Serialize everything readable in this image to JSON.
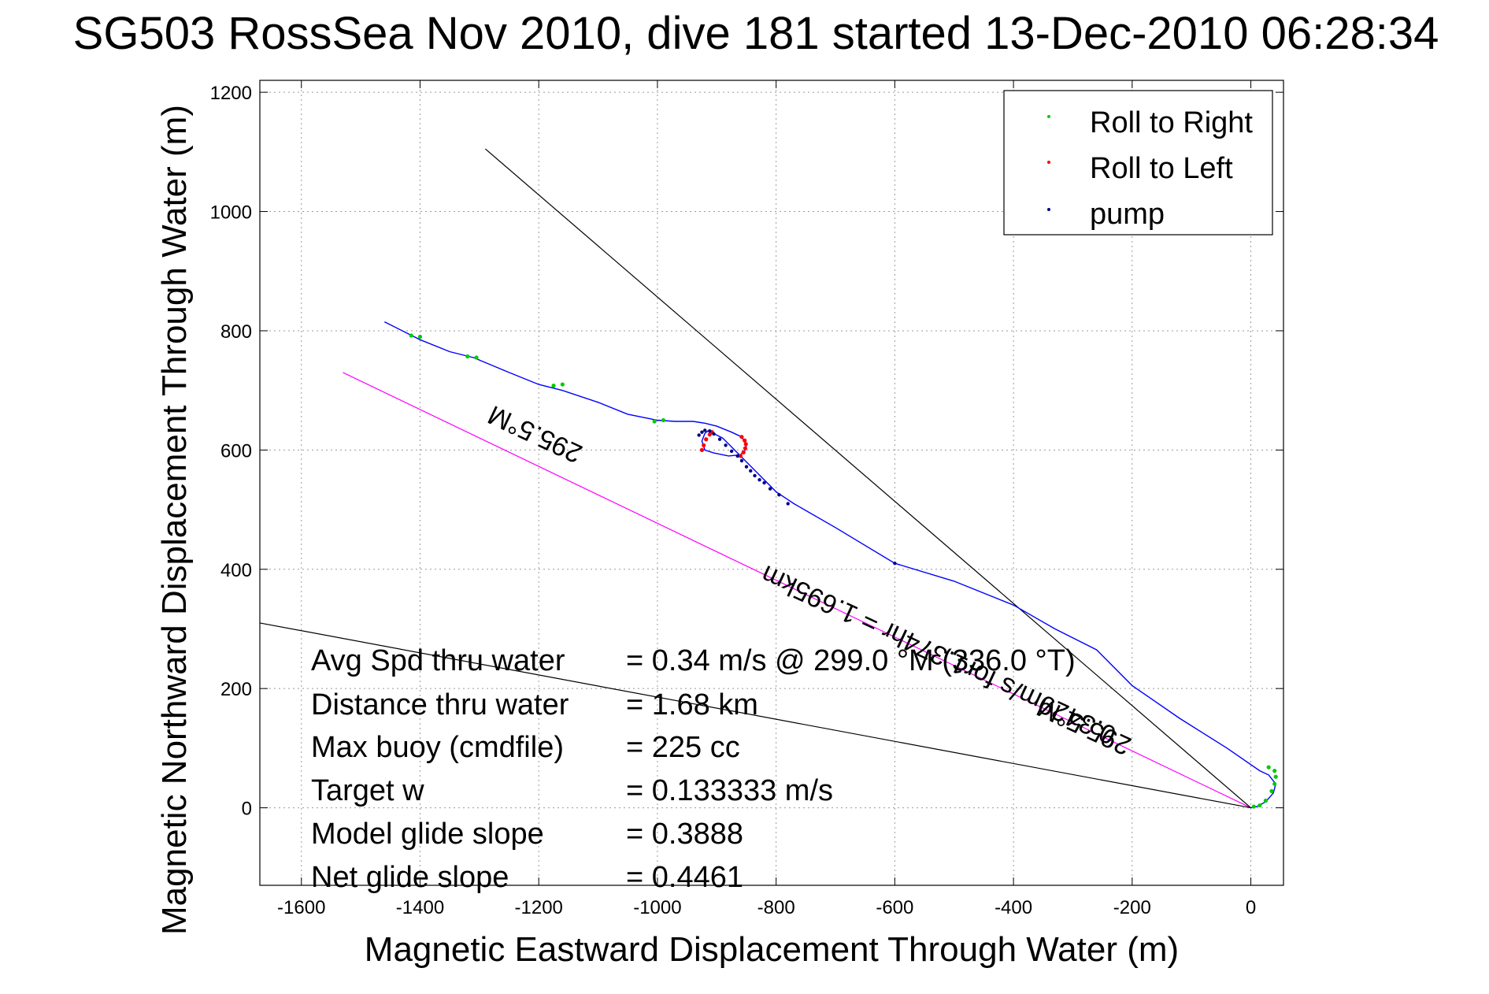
{
  "chart_data": {
    "type": "line",
    "title": "SG503 RossSea Nov 2010, dive 181 started 13-Dec-2010 06:28:34",
    "xlabel": "Magnetic Eastward Displacement Through Water (m)",
    "ylabel": "Magnetic Northward Displacement Through Water (m)",
    "xlim": [
      -1670,
      55
    ],
    "ylim": [
      -130,
      1220
    ],
    "xticks": [
      -1600,
      -1400,
      -1200,
      -1000,
      -800,
      -600,
      -400,
      -200,
      0
    ],
    "yticks": [
      0,
      200,
      400,
      600,
      800,
      1000,
      1200
    ],
    "grid": true,
    "legend": {
      "position": "top-right",
      "entries": [
        {
          "label": "Roll to Right",
          "color": "#00cc00"
        },
        {
          "label": "Roll to Left",
          "color": "#ff0000"
        },
        {
          "label": "pump",
          "color": "#000080"
        }
      ]
    },
    "track": {
      "color": "#0000ff",
      "x": [
        0,
        10,
        25,
        38,
        42,
        30,
        15,
        -40,
        -120,
        -200,
        -260,
        -330,
        -400,
        -500,
        -600,
        -700,
        -770,
        -800,
        -830,
        -850,
        -860,
        -870,
        -880,
        -890,
        -900,
        -910,
        -915,
        -920,
        -925,
        -920,
        -905,
        -880,
        -860,
        -852,
        -850,
        -858,
        -875,
        -900,
        -920,
        -940,
        -970,
        -1000,
        -1050,
        -1100,
        -1160,
        -1200,
        -1250,
        -1310,
        -1350,
        -1400,
        -1420,
        -1460
      ],
      "y": [
        0,
        2,
        10,
        25,
        40,
        55,
        62,
        100,
        150,
        205,
        265,
        300,
        340,
        380,
        410,
        470,
        510,
        530,
        560,
        580,
        590,
        600,
        610,
        620,
        625,
        630,
        632,
        628,
        615,
        600,
        595,
        590,
        592,
        600,
        610,
        622,
        630,
        640,
        645,
        648,
        648,
        650,
        660,
        680,
        700,
        710,
        730,
        755,
        765,
        785,
        795,
        815
      ]
    },
    "roll_right_points": {
      "x": [
        5,
        15,
        25,
        35,
        40,
        42,
        40,
        30,
        -990,
        -1005,
        -1160,
        -1175,
        -1305,
        -1320,
        -1400,
        -1415
      ],
      "y": [
        2,
        4,
        12,
        28,
        40,
        52,
        62,
        68,
        650,
        648,
        710,
        708,
        755,
        757,
        790,
        792
      ]
    },
    "roll_left_points": {
      "x": [
        -925,
        -922,
        -918,
        -912,
        -908,
        -860,
        -855,
        -852,
        -851,
        -853,
        -858
      ],
      "y": [
        600,
        608,
        618,
        626,
        630,
        590,
        596,
        603,
        610,
        616,
        622
      ]
    },
    "pump_points": {
      "x": [
        -930,
        -925,
        -920,
        -912,
        -905,
        -895,
        -885,
        -875,
        -865,
        -858,
        -850,
        -843,
        -836,
        -828,
        -820,
        -810,
        -795,
        -780,
        -600
      ],
      "y": [
        625,
        630,
        633,
        632,
        627,
        618,
        608,
        598,
        590,
        582,
        572,
        565,
        557,
        550,
        545,
        535,
        525,
        510,
        410
      ]
    },
    "reference_lines": [
      {
        "name": "heading-line",
        "color": "#ff00ff",
        "x": [
          0,
          -1530
        ],
        "y": [
          0,
          730
        ]
      },
      {
        "name": "upper-bound-line",
        "color": "#000000",
        "x": [
          0,
          -1290
        ],
        "y": [
          0,
          1105
        ]
      },
      {
        "name": "lower-bound-line",
        "color": "#000000",
        "x": [
          0,
          -1670
        ],
        "y": [
          0,
          310
        ]
      }
    ],
    "rotated_labels": [
      {
        "text": "295.5°M",
        "x": -1200,
        "y": 640,
        "angle": 205
      },
      {
        "text": "0.3429m/s for1.374hr = 1.695km",
        "x": -520,
        "y": 270,
        "angle": 205
      },
      {
        "text": "295.5°M",
        "x": -275,
        "y": 150,
        "angle": 205
      }
    ],
    "stats": {
      "labels": [
        "Avg Spd thru water",
        "Distance thru water",
        "Max buoy (cmdfile)",
        "Target w",
        "Model glide slope",
        "Net glide slope"
      ],
      "values": [
        "=  0.34 m/s @ 299.0 °M (336.0 °T)",
        "=  1.68 km",
        "= 225 cc",
        "= 0.133333 m/s",
        "= 0.3888",
        "= 0.4461"
      ]
    }
  }
}
